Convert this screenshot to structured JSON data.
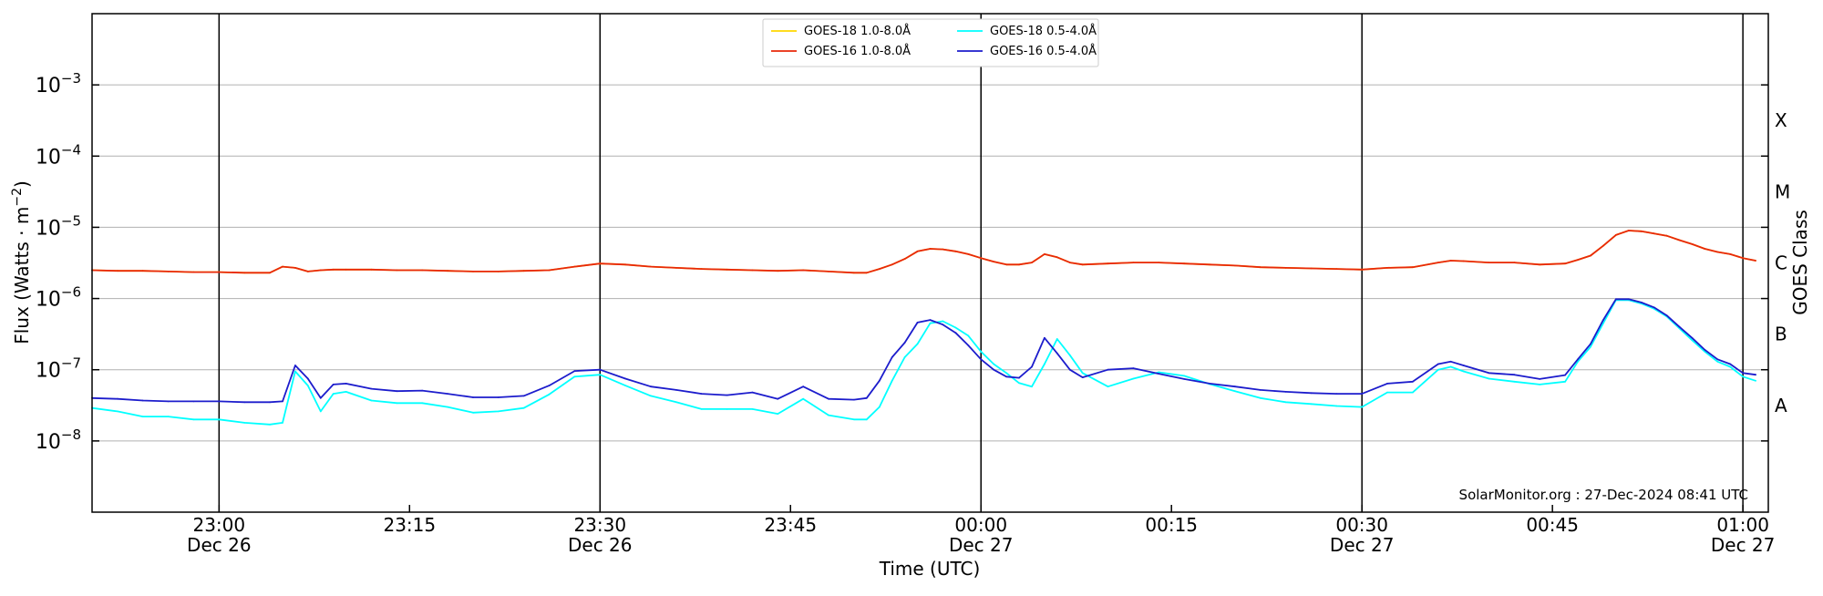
{
  "chart_data": {
    "type": "line",
    "xlabel": "Time (UTC)",
    "ylabel": "Flux (Watts · m",
    "ylabel_sup": "−2",
    "ylabel_close": ")",
    "right_label": "GOES Class",
    "yscale": "log",
    "ylim": [
      1e-09,
      0.01
    ],
    "xlim": [
      "22:50",
      "01:02"
    ],
    "yticks": [
      {
        "value": 1e-08,
        "base": "10",
        "exp": "−8"
      },
      {
        "value": 1e-07,
        "base": "10",
        "exp": "−7"
      },
      {
        "value": 1e-06,
        "base": "10",
        "exp": "−6"
      },
      {
        "value": 1e-05,
        "base": "10",
        "exp": "−5"
      },
      {
        "value": 0.0001,
        "base": "10",
        "exp": "−4"
      },
      {
        "value": 0.001,
        "base": "10",
        "exp": "−3"
      }
    ],
    "grid": "horizontal",
    "classes": [
      {
        "label": "A",
        "value": 3.16e-08
      },
      {
        "label": "B",
        "value": 3.16e-07
      },
      {
        "label": "C",
        "value": 3.16e-06
      },
      {
        "label": "M",
        "value": 3.16e-05
      },
      {
        "label": "X",
        "value": 0.000316
      }
    ],
    "xticks": [
      {
        "time": "23:00",
        "date": "Dec 26",
        "vline": true
      },
      {
        "time": "23:15",
        "date": "",
        "vline": false
      },
      {
        "time": "23:30",
        "date": "Dec 26",
        "vline": true
      },
      {
        "time": "23:45",
        "date": "",
        "vline": false
      },
      {
        "time": "00:00",
        "date": "Dec 27",
        "vline": true
      },
      {
        "time": "00:15",
        "date": "",
        "vline": false
      },
      {
        "time": "00:30",
        "date": "Dec 27",
        "vline": true
      },
      {
        "time": "00:45",
        "date": "",
        "vline": false
      },
      {
        "time": "01:00",
        "date": "Dec 27",
        "vline": true
      }
    ],
    "legend_position": "top-center",
    "annotation": "SolarMonitor.org : 27-Dec-2024 08:41 UTC",
    "x": [
      "22:50",
      "22:52",
      "22:54",
      "22:56",
      "22:58",
      "23:00",
      "23:02",
      "23:04",
      "23:05",
      "23:06",
      "23:07",
      "23:08",
      "23:09",
      "23:10",
      "23:12",
      "23:14",
      "23:16",
      "23:18",
      "23:20",
      "23:22",
      "23:24",
      "23:26",
      "23:28",
      "23:30",
      "23:32",
      "23:34",
      "23:36",
      "23:38",
      "23:40",
      "23:42",
      "23:44",
      "23:46",
      "23:48",
      "23:50",
      "23:51",
      "23:52",
      "23:53",
      "23:54",
      "23:55",
      "23:56",
      "23:57",
      "23:58",
      "23:59",
      "00:00",
      "00:01",
      "00:02",
      "00:03",
      "00:04",
      "00:05",
      "00:06",
      "00:07",
      "00:08",
      "00:10",
      "00:12",
      "00:14",
      "00:16",
      "00:18",
      "00:20",
      "00:22",
      "00:24",
      "00:26",
      "00:28",
      "00:30",
      "00:32",
      "00:34",
      "00:36",
      "00:37",
      "00:38",
      "00:40",
      "00:42",
      "00:44",
      "00:46",
      "00:47",
      "00:48",
      "00:49",
      "00:50",
      "00:51",
      "00:52",
      "00:53",
      "00:54",
      "00:55",
      "00:56",
      "00:57",
      "00:58",
      "00:59",
      "01:00",
      "01:01"
    ],
    "series": [
      {
        "name": "GOES-18 1.0-8.0Å",
        "color": "#ffd700",
        "values": [
          2.5e-06,
          2.45e-06,
          2.45e-06,
          2.4e-06,
          2.35e-06,
          2.35e-06,
          2.3e-06,
          2.3e-06,
          2.8e-06,
          2.7e-06,
          2.4e-06,
          2.5e-06,
          2.55e-06,
          2.55e-06,
          2.55e-06,
          2.5e-06,
          2.5e-06,
          2.45e-06,
          2.4e-06,
          2.4e-06,
          2.45e-06,
          2.5e-06,
          2.8e-06,
          3.1e-06,
          3e-06,
          2.8e-06,
          2.7e-06,
          2.6e-06,
          2.55e-06,
          2.5e-06,
          2.45e-06,
          2.5e-06,
          2.4e-06,
          2.3e-06,
          2.3e-06,
          2.6e-06,
          3e-06,
          3.6e-06,
          4.6e-06,
          5e-06,
          4.9e-06,
          4.6e-06,
          4.2e-06,
          3.7e-06,
          3.3e-06,
          3e-06,
          3e-06,
          3.2e-06,
          4.2e-06,
          3.8e-06,
          3.2e-06,
          3e-06,
          3.1e-06,
          3.2e-06,
          3.2e-06,
          3.1e-06,
          3e-06,
          2.9e-06,
          2.75e-06,
          2.7e-06,
          2.65e-06,
          2.6e-06,
          2.55e-06,
          2.7e-06,
          2.75e-06,
          3.2e-06,
          3.4e-06,
          3.35e-06,
          3.2e-06,
          3.2e-06,
          3e-06,
          3.1e-06,
          3.5e-06,
          4e-06,
          5.5e-06,
          7.8e-06,
          9e-06,
          8.8e-06,
          8.2e-06,
          7.6e-06,
          6.6e-06,
          5.8e-06,
          5e-06,
          4.5e-06,
          4.2e-06,
          3.7e-06,
          3.4e-06
        ]
      },
      {
        "name": "GOES-16 1.0-8.0Å",
        "color": "#e8280a",
        "values": [
          2.5e-06,
          2.45e-06,
          2.45e-06,
          2.4e-06,
          2.35e-06,
          2.35e-06,
          2.3e-06,
          2.3e-06,
          2.8e-06,
          2.7e-06,
          2.4e-06,
          2.5e-06,
          2.55e-06,
          2.55e-06,
          2.55e-06,
          2.5e-06,
          2.5e-06,
          2.45e-06,
          2.4e-06,
          2.4e-06,
          2.45e-06,
          2.5e-06,
          2.8e-06,
          3.1e-06,
          3e-06,
          2.8e-06,
          2.7e-06,
          2.6e-06,
          2.55e-06,
          2.5e-06,
          2.45e-06,
          2.5e-06,
          2.4e-06,
          2.3e-06,
          2.3e-06,
          2.6e-06,
          3e-06,
          3.6e-06,
          4.6e-06,
          5e-06,
          4.9e-06,
          4.6e-06,
          4.2e-06,
          3.7e-06,
          3.3e-06,
          3e-06,
          3e-06,
          3.2e-06,
          4.2e-06,
          3.8e-06,
          3.2e-06,
          3e-06,
          3.1e-06,
          3.2e-06,
          3.2e-06,
          3.1e-06,
          3e-06,
          2.9e-06,
          2.75e-06,
          2.7e-06,
          2.65e-06,
          2.6e-06,
          2.55e-06,
          2.7e-06,
          2.75e-06,
          3.2e-06,
          3.4e-06,
          3.35e-06,
          3.2e-06,
          3.2e-06,
          3e-06,
          3.1e-06,
          3.5e-06,
          4e-06,
          5.5e-06,
          7.8e-06,
          9e-06,
          8.8e-06,
          8.2e-06,
          7.6e-06,
          6.6e-06,
          5.8e-06,
          5e-06,
          4.5e-06,
          4.2e-06,
          3.7e-06,
          3.4e-06
        ]
      },
      {
        "name": "GOES-18 0.5-4.0Å",
        "color": "#00ffff",
        "values": [
          2.9e-08,
          2.6e-08,
          2.2e-08,
          2.2e-08,
          2e-08,
          2e-08,
          1.8e-08,
          1.7e-08,
          1.8e-08,
          9.5e-08,
          6e-08,
          2.6e-08,
          4.6e-08,
          4.9e-08,
          3.7e-08,
          3.4e-08,
          3.4e-08,
          3e-08,
          2.5e-08,
          2.6e-08,
          2.9e-08,
          4.5e-08,
          8e-08,
          8.5e-08,
          6e-08,
          4.3e-08,
          3.5e-08,
          2.8e-08,
          2.8e-08,
          2.8e-08,
          2.4e-08,
          3.9e-08,
          2.3e-08,
          2e-08,
          2e-08,
          3e-08,
          7e-08,
          1.5e-07,
          2.3e-07,
          4.5e-07,
          4.8e-07,
          3.9e-07,
          3e-07,
          1.8e-07,
          1.2e-07,
          9e-08,
          6.5e-08,
          5.8e-08,
          1.2e-07,
          2.7e-07,
          1.6e-07,
          9e-08,
          5.8e-08,
          7.5e-08,
          9.2e-08,
          8.2e-08,
          6.3e-08,
          5e-08,
          4e-08,
          3.5e-08,
          3.3e-08,
          3.1e-08,
          3e-08,
          4.8e-08,
          4.8e-08,
          1e-07,
          1.1e-07,
          9.5e-08,
          7.5e-08,
          6.8e-08,
          6.2e-08,
          6.8e-08,
          1.3e-07,
          2.1e-07,
          4.5e-07,
          9.5e-07,
          9.5e-07,
          8.5e-07,
          7.2e-07,
          5.6e-07,
          3.8e-07,
          2.6e-07,
          1.8e-07,
          1.3e-07,
          1.1e-07,
          8e-08,
          7e-08
        ]
      },
      {
        "name": "GOES-16 0.5-4.0Å",
        "color": "#1c1ccc",
        "values": [
          4e-08,
          3.9e-08,
          3.7e-08,
          3.6e-08,
          3.6e-08,
          3.6e-08,
          3.5e-08,
          3.5e-08,
          3.6e-08,
          1.15e-07,
          7.5e-08,
          4e-08,
          6.2e-08,
          6.4e-08,
          5.4e-08,
          5e-08,
          5.1e-08,
          4.6e-08,
          4.1e-08,
          4.1e-08,
          4.3e-08,
          6e-08,
          9.6e-08,
          1e-07,
          7.5e-08,
          5.8e-08,
          5.2e-08,
          4.6e-08,
          4.4e-08,
          4.8e-08,
          3.9e-08,
          5.8e-08,
          3.9e-08,
          3.8e-08,
          4e-08,
          7e-08,
          1.5e-07,
          2.4e-07,
          4.6e-07,
          5e-07,
          4.3e-07,
          3.3e-07,
          2.2e-07,
          1.4e-07,
          1e-07,
          8e-08,
          7.7e-08,
          1.1e-07,
          2.8e-07,
          1.7e-07,
          1e-07,
          7.8e-08,
          1e-07,
          1.05e-07,
          8.8e-08,
          7.4e-08,
          6.4e-08,
          5.8e-08,
          5.2e-08,
          4.9e-08,
          4.7e-08,
          4.6e-08,
          4.6e-08,
          6.4e-08,
          6.8e-08,
          1.2e-07,
          1.3e-07,
          1.15e-07,
          9e-08,
          8.5e-08,
          7.4e-08,
          8.4e-08,
          1.4e-07,
          2.3e-07,
          5e-07,
          9.8e-07,
          9.8e-07,
          8.8e-07,
          7.5e-07,
          5.8e-07,
          4e-07,
          2.8e-07,
          1.9e-07,
          1.4e-07,
          1.2e-07,
          9e-08,
          8.5e-08
        ]
      }
    ]
  }
}
